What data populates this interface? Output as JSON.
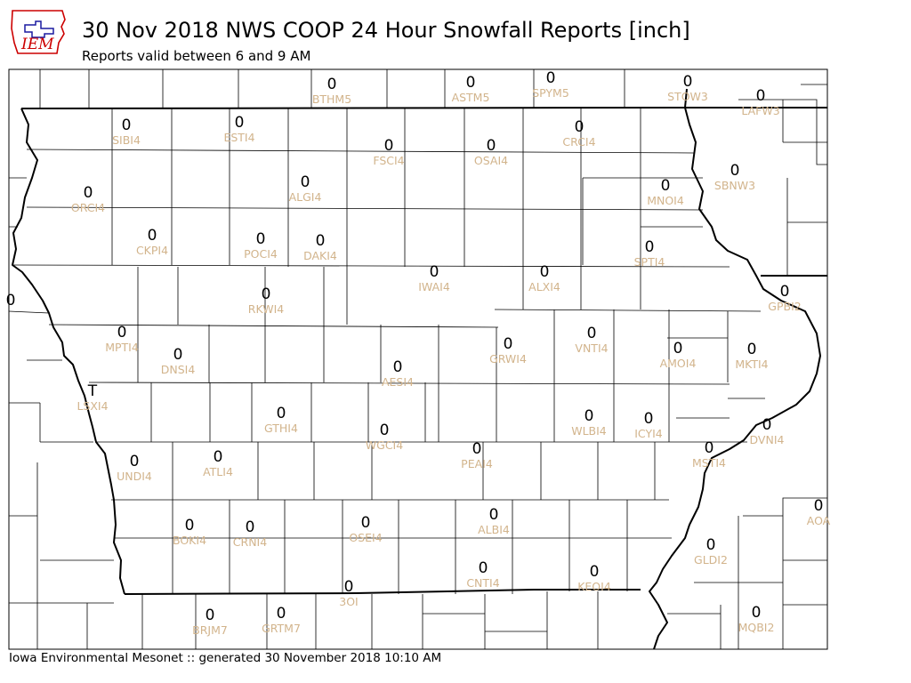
{
  "header": {
    "logo_text": "IEM",
    "title": "30 Nov 2018 NWS COOP 24 Hour Snowfall Reports [inch]",
    "subtitle": "Reports valid between 6 and 9 AM"
  },
  "footer": {
    "text": "Iowa Environmental Mesonet :: generated 30 November 2018 10:10 AM"
  },
  "colors": {
    "value_text": "#000000",
    "station_label": "#D2B48C",
    "logo_text": "#CC0000",
    "logo_map": "#1a1aa0"
  },
  "stations": [
    {
      "id": "BTHM5",
      "value": "0"
    },
    {
      "id": "ASTM5",
      "value": "0"
    },
    {
      "id": "SPYM5",
      "value": "0"
    },
    {
      "id": "STOW3",
      "value": "0"
    },
    {
      "id": "LAFW3",
      "value": "0"
    },
    {
      "id": "SIBI4",
      "value": "0"
    },
    {
      "id": "ESTI4",
      "value": "0"
    },
    {
      "id": "FSCI4",
      "value": "0"
    },
    {
      "id": "OSAI4",
      "value": "0"
    },
    {
      "id": "CRCI4",
      "value": "0"
    },
    {
      "id": "SBNW3",
      "value": "0"
    },
    {
      "id": "ORCI4",
      "value": "0"
    },
    {
      "id": "ALGI4",
      "value": "0"
    },
    {
      "id": "MNOI4",
      "value": "0"
    },
    {
      "id": "CKPI4",
      "value": "0"
    },
    {
      "id": "POCI4",
      "value": "0"
    },
    {
      "id": "DAKI4",
      "value": "0"
    },
    {
      "id": "SPTI4",
      "value": "0"
    },
    {
      "id": "IWAI4",
      "value": "0"
    },
    {
      "id": "ALXI4",
      "value": "0"
    },
    {
      "id": "RKWI4",
      "value": "0"
    },
    {
      "id": "GPBI2",
      "value": "0"
    },
    {
      "id": "MPTI4",
      "value": "0"
    },
    {
      "id": "GRWI4",
      "value": "0"
    },
    {
      "id": "VNTI4",
      "value": "0"
    },
    {
      "id": "DNSI4",
      "value": "0"
    },
    {
      "id": "AMOI4",
      "value": "0"
    },
    {
      "id": "MKTI4",
      "value": "0"
    },
    {
      "id": "AESI4",
      "value": "0"
    },
    {
      "id": "LSXI4",
      "value": "T"
    },
    {
      "id": "GTHI4",
      "value": "0"
    },
    {
      "id": "WLBI4",
      "value": "0"
    },
    {
      "id": "ICYI4",
      "value": "0"
    },
    {
      "id": "WGCI4",
      "value": "0"
    },
    {
      "id": "DVNI4",
      "value": "0"
    },
    {
      "id": "PEAI4",
      "value": "0"
    },
    {
      "id": "MSTI4",
      "value": "0"
    },
    {
      "id": "ATLI4",
      "value": "0"
    },
    {
      "id": "UNDI4",
      "value": "0"
    },
    {
      "id": "AOA",
      "value": "0"
    },
    {
      "id": "OSEI4",
      "value": "0"
    },
    {
      "id": "ALBI4",
      "value": "0"
    },
    {
      "id": "BOKI4",
      "value": "0"
    },
    {
      "id": "CRNI4",
      "value": "0"
    },
    {
      "id": "GLDI2",
      "value": "0"
    },
    {
      "id": "CNTI4",
      "value": "0"
    },
    {
      "id": "KEOI4",
      "value": "0"
    },
    {
      "id": "3OI",
      "value": "0"
    },
    {
      "id": "BRJM7",
      "value": "0"
    },
    {
      "id": "GRTM7",
      "value": "0"
    },
    {
      "id": "MQBI2",
      "value": "0"
    },
    {
      "id": "",
      "value": "0"
    }
  ]
}
